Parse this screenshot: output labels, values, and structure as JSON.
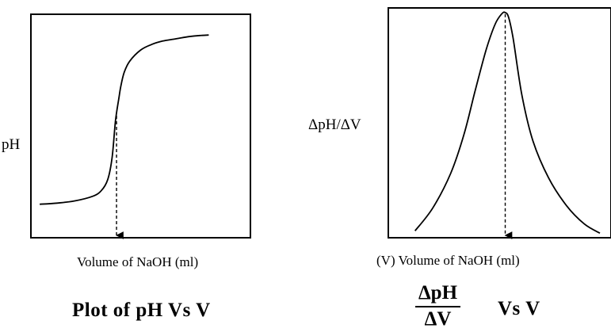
{
  "chart_data": [
    {
      "type": "line",
      "ylabel": "pH",
      "xlabel": "Volume of NaOH (ml)",
      "caption": "Plot of pH Vs V",
      "xlim": [
        0,
        10
      ],
      "ylim": [
        0,
        10
      ],
      "x": [
        0.4,
        1.2,
        2.0,
        2.8,
        3.2,
        3.5,
        3.7,
        3.85,
        4.0,
        4.1,
        4.25,
        4.5,
        5.0,
        5.5,
        6.0,
        6.6,
        7.2,
        7.7,
        8.1
      ],
      "y": [
        1.5,
        1.55,
        1.65,
        1.85,
        2.1,
        2.6,
        3.6,
        5.2,
        6.2,
        6.8,
        7.4,
        7.9,
        8.4,
        8.65,
        8.8,
        8.9,
        9.0,
        9.05,
        9.07
      ],
      "equivalence_x": 3.9
    },
    {
      "type": "line",
      "ylabel": "ΔpH/ΔV",
      "xlabel": "(V)  Volume of NaOH (ml)",
      "caption_fraction": {
        "numerator": "ΔpH",
        "denominator": "ΔV"
      },
      "caption_suffix": "Vs  V",
      "xlim": [
        0,
        10
      ],
      "ylim": [
        0,
        10
      ],
      "x": [
        1.2,
        2.0,
        2.8,
        3.4,
        3.9,
        4.4,
        4.8,
        5.1,
        5.25,
        5.4,
        5.6,
        6.0,
        6.5,
        7.2,
        8.0,
        8.8,
        9.5
      ],
      "y": [
        0.3,
        1.3,
        2.8,
        4.5,
        6.4,
        8.2,
        9.3,
        9.75,
        9.8,
        9.6,
        8.7,
        6.2,
        4.2,
        2.6,
        1.4,
        0.6,
        0.2
      ],
      "peak_x": 5.25
    }
  ]
}
